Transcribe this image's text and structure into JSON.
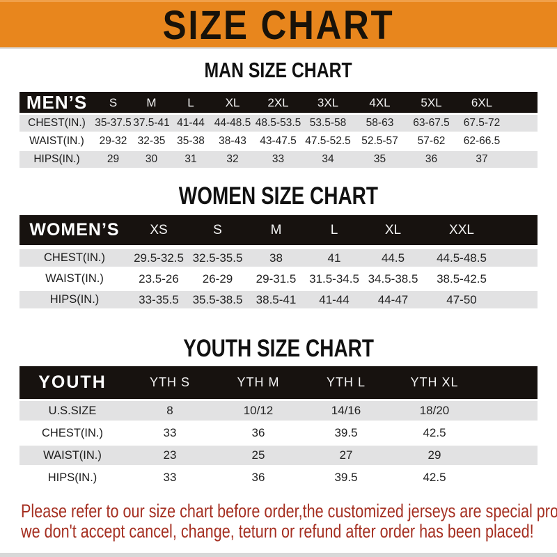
{
  "banner": {
    "title": "SIZE CHART"
  },
  "sections": [
    {
      "id": "men",
      "title": "MAN SIZE CHART",
      "header": [
        "MEN’S",
        "S",
        "M",
        "L",
        "XL",
        "2XL",
        "3XL",
        "4XL",
        "5XL",
        "6XL"
      ],
      "rows": [
        {
          "label": "CHEST(IN.)",
          "values": [
            "35-37.5",
            "37.5-41",
            "41-44",
            "44-48.5",
            "48.5-53.5",
            "53.5-58",
            "58-63",
            "63-67.5",
            "67.5-72"
          ]
        },
        {
          "label": "WAIST(IN.)",
          "values": [
            "29-32",
            "32-35",
            "35-38",
            "38-43",
            "43-47.5",
            "47.5-52.5",
            "52.5-57",
            "57-62",
            "62-66.5"
          ]
        },
        {
          "label": "HIPS(IN.)",
          "values": [
            "29",
            "30",
            "31",
            "32",
            "33",
            "34",
            "35",
            "36",
            "37"
          ]
        }
      ]
    },
    {
      "id": "women",
      "title": "WOMEN SIZE CHART",
      "header": [
        "WOMEN’S",
        "XS",
        "S",
        "M",
        "L",
        "XL",
        "XXL"
      ],
      "rows": [
        {
          "label": "CHEST(IN.)",
          "values": [
            "29.5-32.5",
            "32.5-35.5",
            "38",
            "41",
            "44.5",
            "44.5-48.5"
          ]
        },
        {
          "label": "WAIST(IN.)",
          "values": [
            "23.5-26",
            "26-29",
            "29-31.5",
            "31.5-34.5",
            "34.5-38.5",
            "38.5-42.5"
          ]
        },
        {
          "label": "HIPS(IN.)",
          "values": [
            "33-35.5",
            "35.5-38.5",
            "38.5-41",
            "41-44",
            "44-47",
            "47-50"
          ]
        }
      ]
    },
    {
      "id": "youth",
      "title": "YOUTH SIZE CHART",
      "header": [
        "YOUTH",
        "YTH S",
        "YTH M",
        "YTH L",
        "YTH XL"
      ],
      "rows": [
        {
          "label": "U.S.SIZE",
          "values": [
            "8",
            "10/12",
            "14/16",
            "18/20"
          ]
        },
        {
          "label": "CHEST(IN.)",
          "values": [
            "33",
            "36",
            "39.5",
            "42.5"
          ]
        },
        {
          "label": "WAIST(IN.)",
          "values": [
            "23",
            "25",
            "27",
            "29"
          ]
        },
        {
          "label": "HIPS(IN.)",
          "values": [
            "33",
            "36",
            "39.5",
            "42.5"
          ]
        }
      ]
    }
  ],
  "footer": {
    "lines": [
      "Please refer to our size chart before order,the customized jerseys are special products,",
      "we don't accept cancel, change, teturn or refund after order has been placed!"
    ]
  },
  "colors": {
    "banner_orange": "#E8861D",
    "bar_black": "#17120F",
    "row_gray": "#E2E2E3",
    "footer_red": "#A52F21"
  }
}
